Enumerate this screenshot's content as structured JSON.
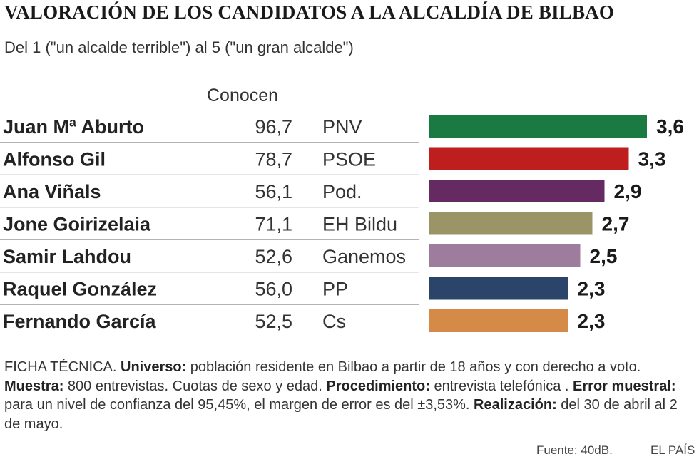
{
  "header": {
    "title": "VALORACIÓN DE LOS CANDIDATOS A LA ALCALDÍA DE BILBAO",
    "subtitle": "Del 1 (\"un alcalde terrible\") al 5 (\"un gran alcalde\")",
    "column_header": "Conocen"
  },
  "chart_data": {
    "type": "bar",
    "orientation": "horizontal",
    "title": "VALORACIÓN DE LOS CANDIDATOS A LA ALCALDÍA DE BILBAO",
    "subtitle": "Del 1 (\"un alcalde terrible\") al 5 (\"un gran alcalde\")",
    "xlim": [
      0,
      3.6
    ],
    "categories": [
      "Juan Mª Aburto",
      "Alfonso Gil",
      "Ana Viñals",
      "Jone Goirizelaia",
      "Samir Lahdou",
      "Raquel González",
      "Fernando García"
    ],
    "conocen": [
      "96,7",
      "78,7",
      "56,1",
      "71,1",
      "52,6",
      "56,0",
      "52,5"
    ],
    "parties": [
      "PNV",
      "PSOE",
      "Pod.",
      "EH Bildu",
      "Ganemos",
      "PP",
      "Cs"
    ],
    "values": [
      3.6,
      3.3,
      2.9,
      2.7,
      2.5,
      2.3,
      2.3
    ],
    "value_labels": [
      "3,6",
      "3,3",
      "2,9",
      "2,7",
      "2,5",
      "2,3",
      "2,3"
    ],
    "colors": [
      "#1a7a41",
      "#be1e1e",
      "#662a63",
      "#9a9467",
      "#9e7c9d",
      "#2b4469",
      "#d68a47"
    ]
  },
  "ficha": {
    "lead": "FICHA TÉCNICA. ",
    "universo_label": "Universo:",
    "universo_text": " población residente en Bilbao a partir de 18 años y con derecho a voto. ",
    "muestra_label": "Muestra:",
    "muestra_text": " 800 entrevistas. Cuotas de sexo y edad. ",
    "procedimiento_label": "Procedimiento:",
    "procedimiento_text": " entrevista telefónica . ",
    "error_label": "Error muestral:",
    "error_text": " para un nivel de confianza del 95,45%, el margen de error es del ±3,53%. ",
    "realizacion_label": "Realización:",
    "realizacion_text": " del 30 de abril al 2 de mayo."
  },
  "footer": {
    "source": "Fuente: 40dB.",
    "brand": "EL PAÍS"
  }
}
